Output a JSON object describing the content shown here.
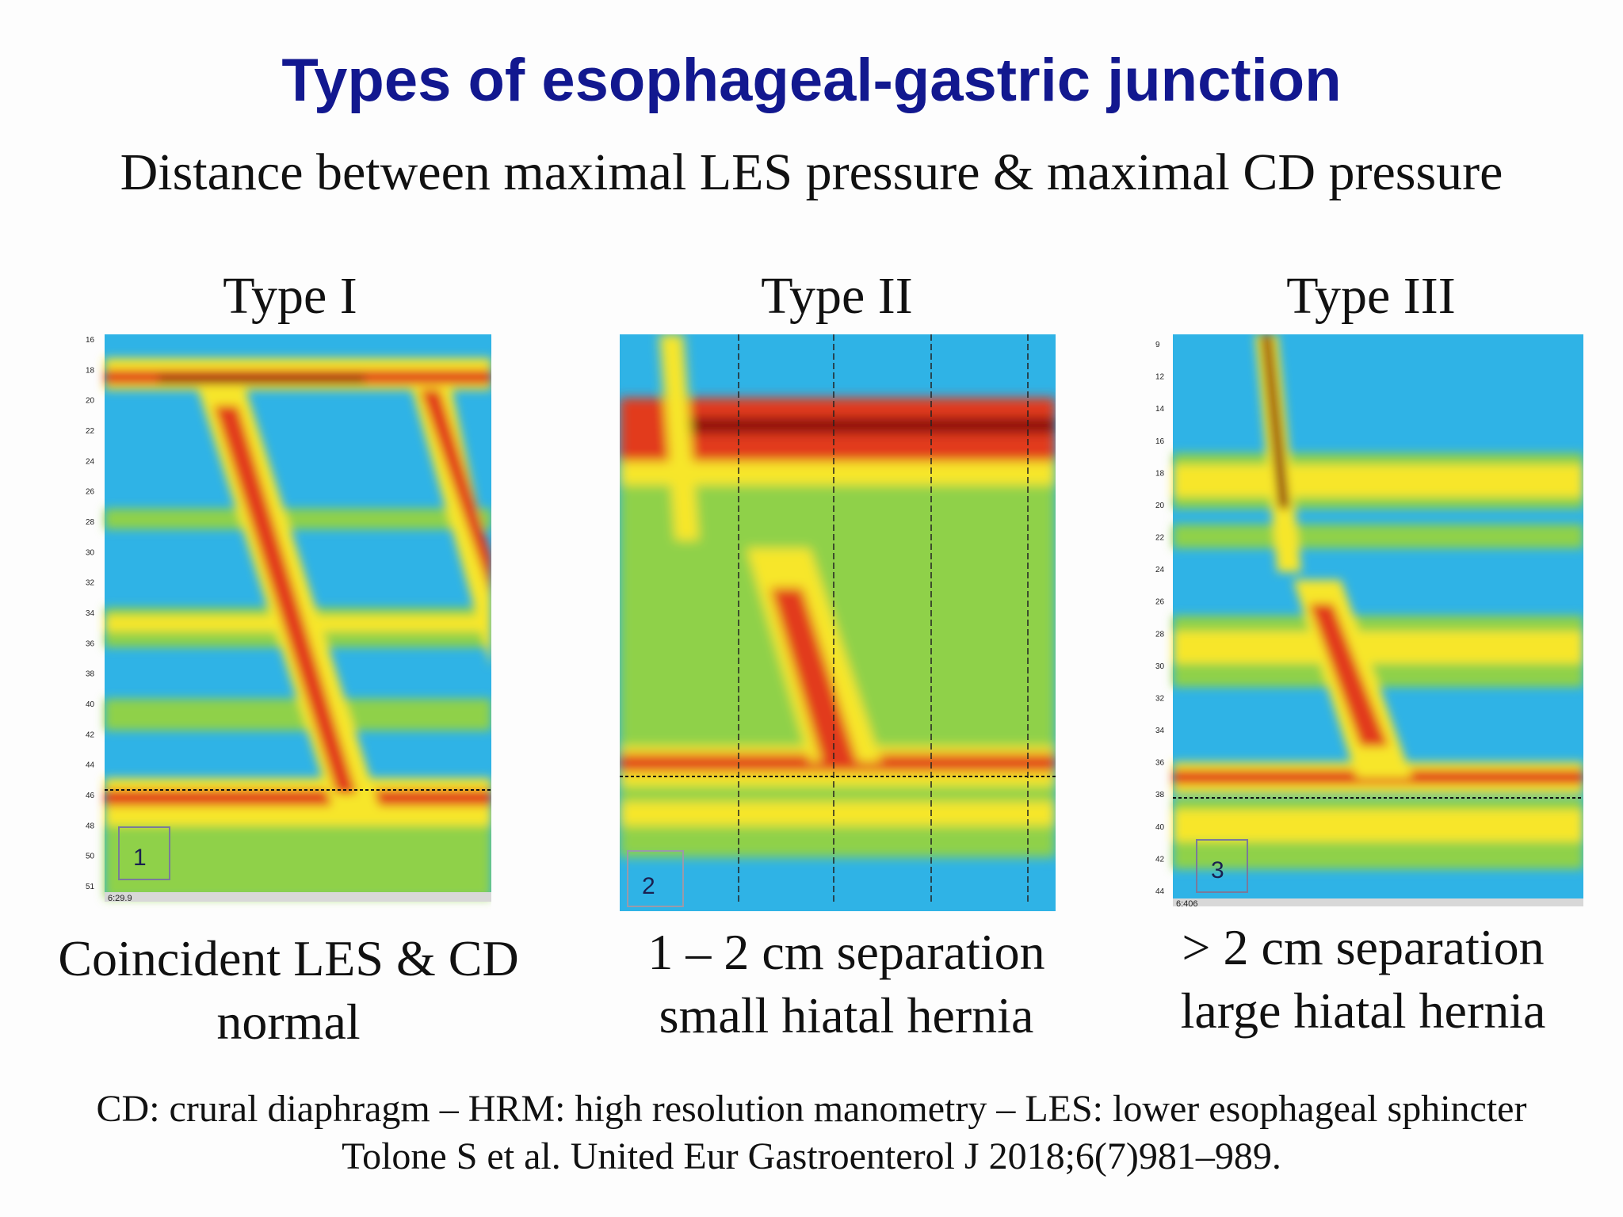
{
  "header": {
    "title": "Types of esophageal-gastric junction",
    "subtitle": "Distance between maximal LES pressure & maximal CD pressure"
  },
  "panels": [
    {
      "label": "Type I",
      "badge": "1",
      "caption_line1": "Coincident LES & CD",
      "caption_line2": "normal",
      "ticks": [
        "16",
        "18",
        "20",
        "22",
        "24",
        "26",
        "28",
        "30",
        "32",
        "34",
        "36",
        "38",
        "40",
        "42",
        "44",
        "46",
        "48",
        "50",
        "51"
      ],
      "footer_text": "6:29.9"
    },
    {
      "label": "Type II",
      "badge": "2",
      "caption_line1": "1 – 2 cm separation",
      "caption_line2": "small hiatal hernia"
    },
    {
      "label": "Type III",
      "badge": "3",
      "caption_line1": "> 2 cm separation",
      "caption_line2": "large hiatal hernia",
      "ticks": [
        "9",
        "12",
        "14",
        "16",
        "18",
        "20",
        "22",
        "24",
        "26",
        "28",
        "30",
        "32",
        "34",
        "36",
        "38",
        "40",
        "42",
        "44"
      ],
      "footer_text": "6:406"
    }
  ],
  "footer": {
    "abbreviations": "CD: crural diaphragm – HRM: high resolution manometry – LES: lower esophageal sphincter",
    "citation": "Tolone S et al. United Eur Gastroenterol J 2018;6(7)981–989."
  },
  "colors": {
    "title": "#12188f",
    "pressure_low": "#2fb3e6",
    "pressure_mid": "#8fd14a",
    "pressure_high": "#f7e62a",
    "pressure_peak": "#e23a1a",
    "pressure_max": "#8a1010"
  }
}
